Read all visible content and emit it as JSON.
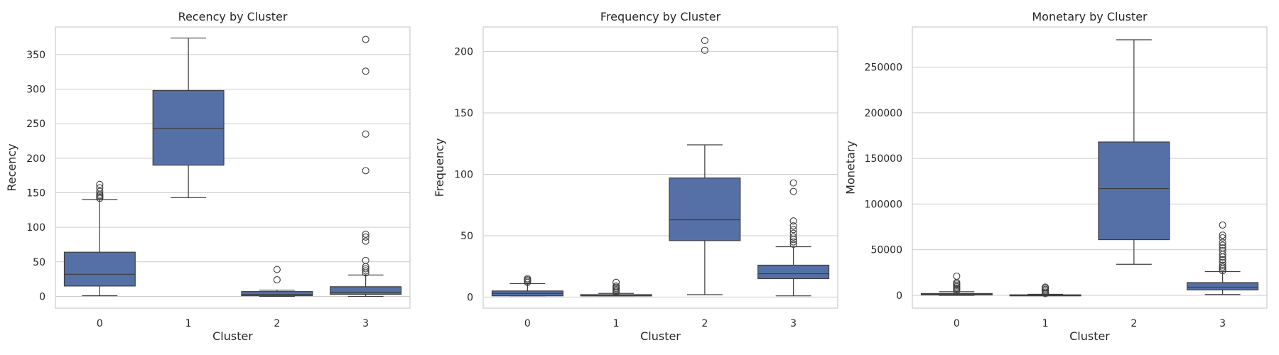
{
  "style": {
    "box_fill": "#5470a6",
    "line_color": "#3d3d3d",
    "grid_color": "#cccccc",
    "frame_color": "#cccccc"
  },
  "chart_data": [
    {
      "type": "box",
      "title": "Recency by Cluster",
      "xlabel": "Cluster",
      "ylabel": "Recency",
      "categories": [
        "0",
        "1",
        "2",
        "3"
      ],
      "ylim": [
        -17,
        390
      ],
      "yticks": [
        0,
        50,
        100,
        150,
        200,
        250,
        300,
        350
      ],
      "grid": "y",
      "boxes": [
        {
          "whislo": 1,
          "q1": 15,
          "med": 32,
          "q3": 64,
          "whishi": 140,
          "fliers": [
            142,
            144,
            146,
            148,
            152,
            157,
            162
          ]
        },
        {
          "whislo": 143,
          "q1": 190,
          "med": 243,
          "q3": 298,
          "whishi": 374,
          "fliers": []
        },
        {
          "whislo": 0,
          "q1": 1,
          "med": 3,
          "q3": 7,
          "whishi": 9,
          "fliers": [
            24,
            39
          ]
        },
        {
          "whislo": 0,
          "q1": 3,
          "med": 6,
          "q3": 14,
          "whishi": 31,
          "fliers": [
            34,
            37,
            40,
            43,
            52,
            80,
            86,
            90,
            182,
            235,
            326,
            372
          ]
        }
      ]
    },
    {
      "type": "box",
      "title": "Frequency by Cluster",
      "xlabel": "Cluster",
      "ylabel": "Frequency",
      "categories": [
        "0",
        "1",
        "2",
        "3"
      ],
      "ylim": [
        -9,
        220
      ],
      "yticks": [
        0,
        50,
        100,
        150,
        200
      ],
      "grid": "y",
      "boxes": [
        {
          "whislo": 1,
          "q1": 1,
          "med": 3,
          "q3": 5,
          "whishi": 11,
          "fliers": [
            12,
            13,
            14,
            15
          ]
        },
        {
          "whislo": 1,
          "q1": 1,
          "med": 1,
          "q3": 2,
          "whishi": 3,
          "fliers": [
            4,
            5,
            6,
            7,
            8,
            9,
            12
          ]
        },
        {
          "whislo": 2,
          "q1": 46,
          "med": 63,
          "q3": 97,
          "whishi": 124,
          "fliers": [
            201,
            209
          ]
        },
        {
          "whislo": 1,
          "q1": 15,
          "med": 19,
          "q3": 26,
          "whishi": 41,
          "fliers": [
            43,
            45,
            47,
            49,
            52,
            55,
            58,
            62,
            86,
            93
          ]
        }
      ]
    },
    {
      "type": "box",
      "title": "Monetary by Cluster",
      "xlabel": "Cluster",
      "ylabel": "Monetary",
      "categories": [
        "0",
        "1",
        "2",
        "3"
      ],
      "ylim": [
        -14000,
        294000
      ],
      "yticks": [
        0,
        50000,
        100000,
        150000,
        200000,
        250000
      ],
      "grid": "y",
      "boxes": [
        {
          "whislo": 0,
          "q1": 500,
          "med": 1000,
          "q3": 2000,
          "whishi": 4000,
          "fliers": [
            5000,
            6500,
            8000,
            9500,
            11000,
            12500,
            14000,
            21000
          ]
        },
        {
          "whislo": 0,
          "q1": 150,
          "med": 300,
          "q3": 600,
          "whishi": 1200,
          "fliers": [
            2000,
            3500,
            5000,
            6500,
            8000,
            9000
          ]
        },
        {
          "whislo": 34000,
          "q1": 61000,
          "med": 117000,
          "q3": 168000,
          "whishi": 280000,
          "fliers": []
        },
        {
          "whislo": 1000,
          "q1": 6000,
          "med": 9000,
          "q3": 14000,
          "whishi": 26000,
          "fliers": [
            27000,
            29000,
            31000,
            33000,
            36000,
            39000,
            42000,
            45000,
            49000,
            52000,
            55000,
            58000,
            63000,
            66000,
            77000
          ]
        }
      ]
    }
  ]
}
